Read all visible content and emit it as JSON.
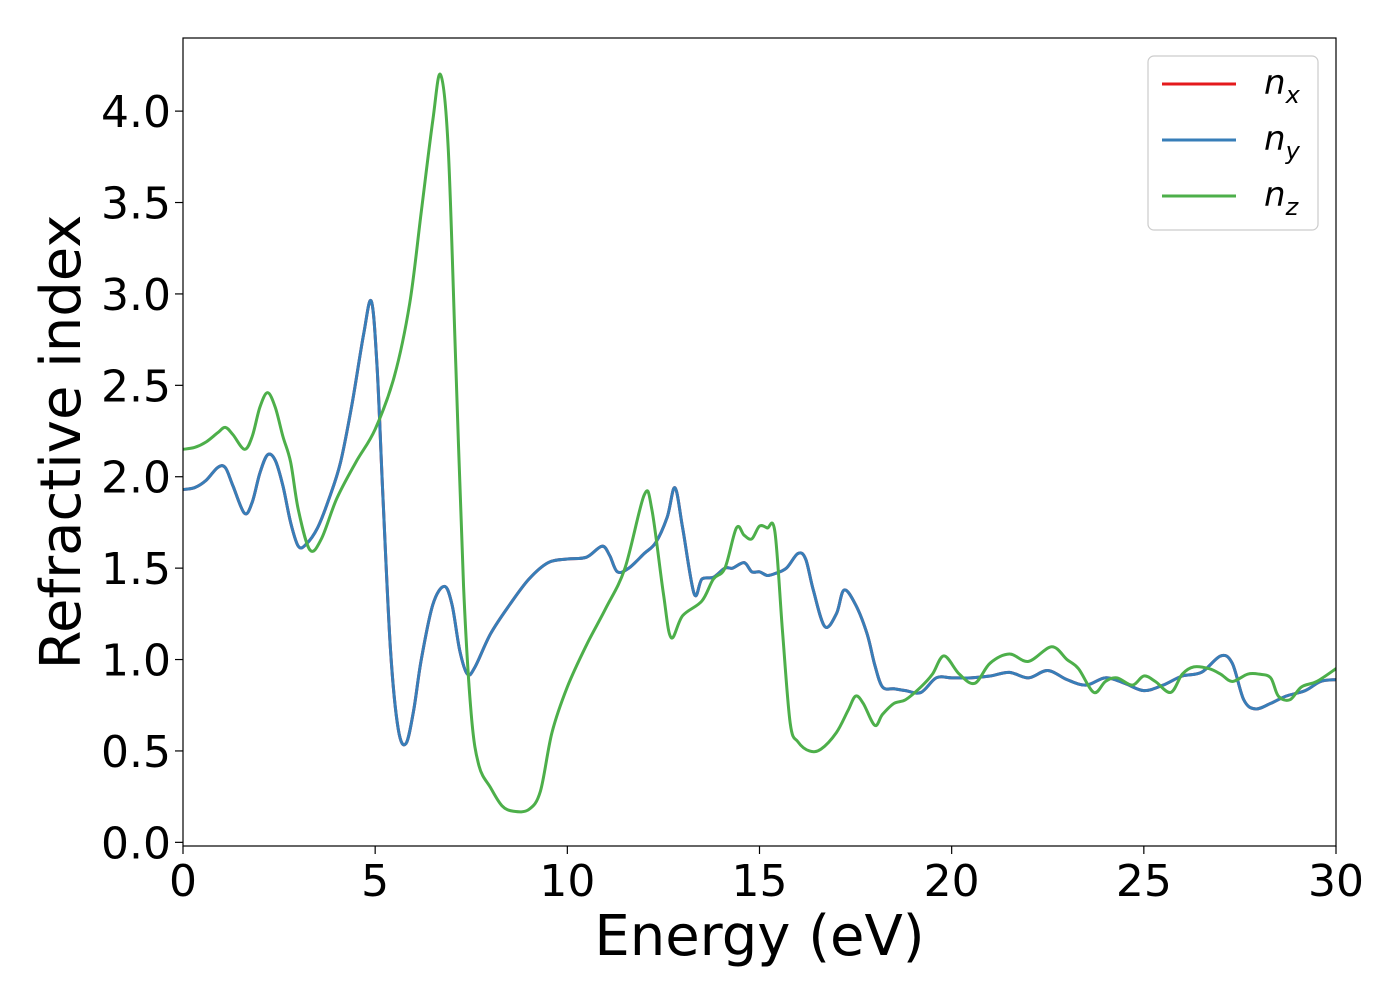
{
  "chart_data": {
    "type": "line",
    "title": "",
    "xlabel": "Energy (eV)",
    "ylabel": "Refractive index",
    "xlim": [
      0,
      30
    ],
    "ylim": [
      -0.02,
      4.4
    ],
    "xticks": [
      0,
      5,
      10,
      15,
      20,
      25,
      30
    ],
    "xtick_labels": [
      "0",
      "5",
      "10",
      "15",
      "20",
      "25",
      "30"
    ],
    "yticks": [
      0.0,
      0.5,
      1.0,
      1.5,
      2.0,
      2.5,
      3.0,
      3.5,
      4.0
    ],
    "ytick_labels": [
      "0.0",
      "0.5",
      "1.0",
      "1.5",
      "2.0",
      "2.5",
      "3.0",
      "3.5",
      "4.0"
    ],
    "grid": false,
    "legend_position": "top-right",
    "series": [
      {
        "name": "n_x",
        "legend_base": "n",
        "legend_sub": "x",
        "color": "#e41a1c",
        "x": [
          0,
          0.3,
          0.6,
          0.9,
          1.1,
          1.3,
          1.6,
          1.8,
          2.0,
          2.2,
          2.4,
          2.6,
          2.8,
          3.0,
          3.2,
          3.5,
          3.8,
          4.1,
          4.4,
          4.7,
          4.9,
          5.05,
          5.2,
          5.4,
          5.6,
          5.8,
          6.0,
          6.2,
          6.5,
          6.8,
          7.0,
          7.2,
          7.4,
          7.6,
          8.0,
          8.5,
          9.0,
          9.5,
          10.0,
          10.5,
          10.9,
          11.1,
          11.3,
          11.6,
          12.0,
          12.3,
          12.6,
          12.8,
          13.0,
          13.3,
          13.5,
          13.8,
          14.1,
          14.3,
          14.6,
          14.8,
          15.0,
          15.2,
          15.4,
          15.7,
          16.0,
          16.2,
          16.4,
          16.7,
          17.0,
          17.2,
          17.5,
          17.8,
          18.0,
          18.2,
          18.5,
          18.8,
          19.2,
          19.6,
          20.0,
          20.5,
          21.0,
          21.5,
          22.0,
          22.5,
          23.0,
          23.5,
          24.0,
          24.5,
          25.0,
          25.5,
          26.0,
          26.5,
          27.0,
          27.3,
          27.6,
          27.9,
          28.3,
          28.7,
          29.2,
          29.6,
          30.0
        ],
        "y": [
          1.93,
          1.94,
          1.98,
          2.05,
          2.05,
          1.95,
          1.8,
          1.86,
          2.02,
          2.12,
          2.09,
          1.95,
          1.75,
          1.62,
          1.63,
          1.72,
          1.88,
          2.08,
          2.4,
          2.78,
          2.96,
          2.6,
          1.9,
          1.05,
          0.62,
          0.54,
          0.72,
          1.0,
          1.3,
          1.4,
          1.3,
          1.05,
          0.92,
          0.96,
          1.14,
          1.3,
          1.44,
          1.53,
          1.55,
          1.56,
          1.62,
          1.57,
          1.48,
          1.5,
          1.58,
          1.64,
          1.78,
          1.94,
          1.72,
          1.36,
          1.44,
          1.45,
          1.5,
          1.5,
          1.53,
          1.48,
          1.48,
          1.46,
          1.47,
          1.5,
          1.58,
          1.55,
          1.38,
          1.18,
          1.25,
          1.38,
          1.3,
          1.14,
          0.97,
          0.85,
          0.84,
          0.83,
          0.82,
          0.9,
          0.9,
          0.9,
          0.91,
          0.93,
          0.9,
          0.94,
          0.89,
          0.86,
          0.9,
          0.87,
          0.83,
          0.86,
          0.91,
          0.93,
          1.02,
          0.98,
          0.78,
          0.73,
          0.76,
          0.8,
          0.83,
          0.88,
          0.89
        ]
      },
      {
        "name": "n_y",
        "legend_base": "n",
        "legend_sub": "y",
        "color": "#377eb8",
        "x": [
          0,
          0.3,
          0.6,
          0.9,
          1.1,
          1.3,
          1.6,
          1.8,
          2.0,
          2.2,
          2.4,
          2.6,
          2.8,
          3.0,
          3.2,
          3.5,
          3.8,
          4.1,
          4.4,
          4.7,
          4.9,
          5.05,
          5.2,
          5.4,
          5.6,
          5.8,
          6.0,
          6.2,
          6.5,
          6.8,
          7.0,
          7.2,
          7.4,
          7.6,
          8.0,
          8.5,
          9.0,
          9.5,
          10.0,
          10.5,
          10.9,
          11.1,
          11.3,
          11.6,
          12.0,
          12.3,
          12.6,
          12.8,
          13.0,
          13.3,
          13.5,
          13.8,
          14.1,
          14.3,
          14.6,
          14.8,
          15.0,
          15.2,
          15.4,
          15.7,
          16.0,
          16.2,
          16.4,
          16.7,
          17.0,
          17.2,
          17.5,
          17.8,
          18.0,
          18.2,
          18.5,
          18.8,
          19.2,
          19.6,
          20.0,
          20.5,
          21.0,
          21.5,
          22.0,
          22.5,
          23.0,
          23.5,
          24.0,
          24.5,
          25.0,
          25.5,
          26.0,
          26.5,
          27.0,
          27.3,
          27.6,
          27.9,
          28.3,
          28.7,
          29.2,
          29.6,
          30.0
        ],
        "y": [
          1.93,
          1.94,
          1.98,
          2.05,
          2.05,
          1.95,
          1.8,
          1.86,
          2.02,
          2.12,
          2.09,
          1.95,
          1.75,
          1.62,
          1.63,
          1.72,
          1.88,
          2.08,
          2.4,
          2.78,
          2.96,
          2.6,
          1.9,
          1.05,
          0.62,
          0.54,
          0.72,
          1.0,
          1.3,
          1.4,
          1.3,
          1.05,
          0.92,
          0.96,
          1.14,
          1.3,
          1.44,
          1.53,
          1.55,
          1.56,
          1.62,
          1.57,
          1.48,
          1.5,
          1.58,
          1.64,
          1.78,
          1.94,
          1.72,
          1.36,
          1.44,
          1.45,
          1.5,
          1.5,
          1.53,
          1.48,
          1.48,
          1.46,
          1.47,
          1.5,
          1.58,
          1.55,
          1.38,
          1.18,
          1.25,
          1.38,
          1.3,
          1.14,
          0.97,
          0.85,
          0.84,
          0.83,
          0.82,
          0.9,
          0.9,
          0.9,
          0.91,
          0.93,
          0.9,
          0.94,
          0.89,
          0.86,
          0.9,
          0.87,
          0.83,
          0.86,
          0.91,
          0.93,
          1.02,
          0.98,
          0.78,
          0.73,
          0.76,
          0.8,
          0.83,
          0.88,
          0.89
        ]
      },
      {
        "name": "n_z",
        "legend_base": "n",
        "legend_sub": "z",
        "color": "#4daf4a",
        "x": [
          0,
          0.3,
          0.6,
          0.9,
          1.1,
          1.3,
          1.6,
          1.8,
          2.0,
          2.2,
          2.4,
          2.6,
          2.8,
          3.0,
          3.3,
          3.6,
          4.0,
          4.5,
          5.0,
          5.5,
          5.9,
          6.2,
          6.5,
          6.7,
          6.9,
          7.1,
          7.3,
          7.5,
          7.7,
          8.0,
          8.3,
          8.6,
          9.0,
          9.3,
          9.6,
          10.0,
          10.5,
          11.0,
          11.5,
          12.0,
          12.2,
          12.5,
          12.7,
          13.0,
          13.5,
          13.8,
          14.1,
          14.4,
          14.6,
          14.8,
          15.0,
          15.2,
          15.4,
          15.6,
          15.8,
          16.0,
          16.3,
          16.6,
          17.0,
          17.3,
          17.5,
          17.7,
          18.0,
          18.2,
          18.5,
          18.8,
          19.2,
          19.5,
          19.8,
          20.2,
          20.6,
          21.0,
          21.5,
          22.0,
          22.6,
          23.0,
          23.3,
          23.7,
          24.0,
          24.3,
          24.7,
          25.0,
          25.3,
          25.7,
          26.0,
          26.3,
          26.7,
          27.0,
          27.3,
          27.7,
          28.0,
          28.3,
          28.5,
          28.8,
          29.1,
          29.5,
          30.0
        ],
        "y": [
          2.15,
          2.16,
          2.19,
          2.24,
          2.27,
          2.23,
          2.15,
          2.22,
          2.38,
          2.46,
          2.38,
          2.22,
          2.08,
          1.82,
          1.6,
          1.66,
          1.88,
          2.08,
          2.26,
          2.55,
          2.95,
          3.45,
          3.95,
          4.2,
          3.8,
          2.6,
          1.4,
          0.7,
          0.42,
          0.3,
          0.2,
          0.17,
          0.18,
          0.28,
          0.6,
          0.85,
          1.08,
          1.28,
          1.5,
          1.9,
          1.82,
          1.36,
          1.12,
          1.24,
          1.32,
          1.44,
          1.5,
          1.72,
          1.68,
          1.66,
          1.73,
          1.72,
          1.7,
          1.15,
          0.65,
          0.55,
          0.5,
          0.51,
          0.6,
          0.72,
          0.8,
          0.76,
          0.64,
          0.7,
          0.76,
          0.78,
          0.85,
          0.92,
          1.02,
          0.92,
          0.87,
          0.98,
          1.03,
          0.99,
          1.07,
          1.0,
          0.95,
          0.82,
          0.88,
          0.9,
          0.86,
          0.91,
          0.88,
          0.82,
          0.92,
          0.96,
          0.95,
          0.92,
          0.88,
          0.92,
          0.92,
          0.9,
          0.8,
          0.78,
          0.85,
          0.88,
          0.95
        ]
      }
    ]
  }
}
